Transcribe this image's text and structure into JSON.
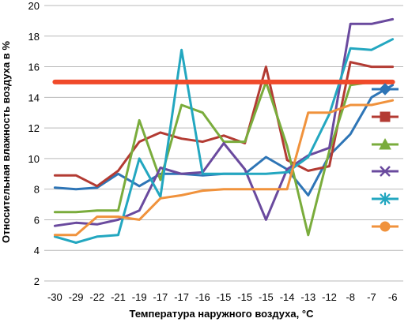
{
  "chart_data": {
    "type": "line",
    "title": "",
    "xlabel": "Температура наружного воздуха, °С",
    "ylabel": "Относительная влажность воздуха в %",
    "ylim": [
      2,
      20
    ],
    "yticks": [
      2,
      4,
      6,
      8,
      10,
      12,
      14,
      16,
      18,
      20
    ],
    "grid": true,
    "legend": "right",
    "categories": [
      "-30",
      "-29",
      "-22",
      "-21",
      "-19",
      "-17",
      "-17",
      "-16",
      "-15",
      "-15",
      "-15",
      "-14",
      "-13",
      "-12",
      "-8",
      "-7",
      "-6"
    ],
    "series": [
      {
        "color": "#2e75b6",
        "marker": "diamond",
        "values": [
          8.1,
          8.0,
          8.1,
          9.0,
          8.2,
          9.0,
          9.0,
          8.9,
          9.0,
          9.0,
          10.1,
          9.3,
          7.6,
          10.2,
          11.6,
          14.0,
          14.8
        ]
      },
      {
        "color": "#b33b33",
        "marker": "square",
        "values": [
          8.9,
          8.9,
          8.2,
          9.2,
          11.1,
          11.7,
          11.3,
          11.1,
          11.5,
          11.0,
          16.0,
          9.9,
          9.2,
          9.5,
          16.3,
          16.0,
          16.0
        ]
      },
      {
        "color": "#7aac3c",
        "marker": "triangle",
        "values": [
          6.5,
          6.5,
          6.6,
          6.6,
          12.5,
          8.6,
          13.5,
          13.0,
          11.1,
          11.1,
          15.0,
          10.8,
          5.0,
          10.5,
          14.8,
          15.0,
          15.0
        ]
      },
      {
        "color": "#6a4a9e",
        "marker": "x",
        "values": [
          5.6,
          5.8,
          5.7,
          6.0,
          6.6,
          9.4,
          9.0,
          9.1,
          11.0,
          9.3,
          6.0,
          9.3,
          10.2,
          10.7,
          18.8,
          18.8,
          19.1
        ]
      },
      {
        "color": "#23a7c0",
        "marker": "star",
        "values": [
          4.9,
          4.5,
          4.9,
          5.0,
          10.0,
          7.5,
          17.1,
          9.0,
          9.0,
          9.0,
          9.0,
          9.1,
          10.1,
          12.9,
          17.2,
          17.1,
          17.8
        ]
      },
      {
        "color": "#f0923c",
        "marker": "circle",
        "values": [
          5.0,
          5.0,
          6.2,
          6.2,
          6.0,
          7.4,
          7.6,
          7.9,
          8.0,
          8.0,
          8.0,
          8.0,
          13.0,
          13.0,
          13.5,
          13.5,
          13.8
        ]
      },
      {
        "color": "#f04a2a",
        "values": [
          15,
          15,
          15,
          15,
          15,
          15,
          15,
          15,
          15,
          15,
          15,
          15,
          15,
          15,
          15,
          15,
          15
        ]
      }
    ]
  }
}
